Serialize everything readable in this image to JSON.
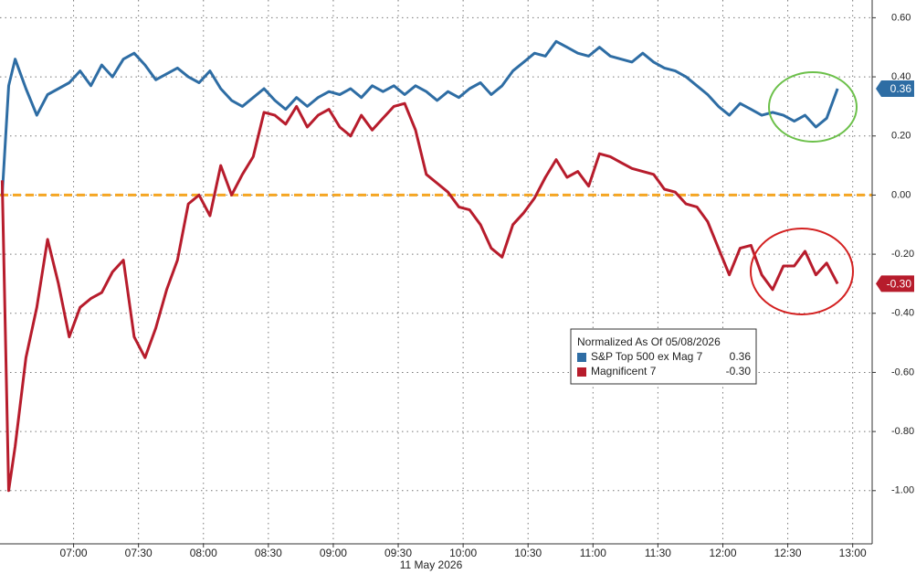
{
  "chart_data": {
    "type": "line",
    "x_label": "11 May 2026",
    "legend_title": "Normalized As Of 05/08/2026",
    "xlim": [
      "06:26",
      "13:09"
    ],
    "xticks": [
      "07:00",
      "07:30",
      "08:00",
      "08:30",
      "09:00",
      "09:30",
      "10:00",
      "10:30",
      "11:00",
      "11:30",
      "12:00",
      "12:30",
      "13:00"
    ],
    "ylim": [
      -1.18,
      0.66
    ],
    "yticks": [
      {
        "value": 0.6,
        "label": "0.60"
      },
      {
        "value": 0.4,
        "label": "0.40"
      },
      {
        "value": 0.2,
        "label": "0.20"
      },
      {
        "value": 0,
        "label": "0.00"
      },
      {
        "value": -0.2,
        "label": "-0.20"
      },
      {
        "value": -0.4,
        "label": "-0.40"
      },
      {
        "value": -0.6,
        "label": "-0.60"
      },
      {
        "value": -0.8,
        "label": "-0.80"
      },
      {
        "value": -1,
        "label": "-1.00"
      }
    ],
    "grid": true,
    "reference_line": {
      "value": 0,
      "color": "#f5a623"
    },
    "x": [
      "06:27",
      "06:30",
      "06:33",
      "06:38",
      "06:43",
      "06:48",
      "06:53",
      "06:58",
      "07:03",
      "07:08",
      "07:13",
      "07:18",
      "07:23",
      "07:28",
      "07:33",
      "07:38",
      "07:43",
      "07:48",
      "07:53",
      "07:58",
      "08:03",
      "08:08",
      "08:13",
      "08:18",
      "08:23",
      "08:28",
      "08:33",
      "08:38",
      "08:43",
      "08:48",
      "08:53",
      "08:58",
      "09:03",
      "09:08",
      "09:13",
      "09:18",
      "09:23",
      "09:28",
      "09:33",
      "09:38",
      "09:43",
      "09:48",
      "09:53",
      "09:58",
      "10:03",
      "10:08",
      "10:13",
      "10:18",
      "10:23",
      "10:28",
      "10:33",
      "10:38",
      "10:43",
      "10:48",
      "10:53",
      "10:58",
      "11:03",
      "11:08",
      "11:13",
      "11:18",
      "11:23",
      "11:28",
      "11:33",
      "11:38",
      "11:43",
      "11:48",
      "11:53",
      "11:58",
      "12:03",
      "12:08",
      "12:13",
      "12:18",
      "12:23",
      "12:28",
      "12:33",
      "12:38",
      "12:43",
      "12:48",
      "12:53"
    ],
    "series": [
      {
        "name": "S&P Top 500 ex Mag 7",
        "color": "#2e6da4",
        "last_value_label": "0.36",
        "values": [
          0.0,
          0.37,
          0.46,
          0.36,
          0.27,
          0.34,
          0.36,
          0.38,
          0.42,
          0.37,
          0.44,
          0.4,
          0.46,
          0.48,
          0.44,
          0.39,
          0.41,
          0.43,
          0.4,
          0.38,
          0.42,
          0.36,
          0.32,
          0.3,
          0.33,
          0.36,
          0.32,
          0.29,
          0.33,
          0.3,
          0.33,
          0.35,
          0.34,
          0.36,
          0.33,
          0.37,
          0.35,
          0.37,
          0.34,
          0.37,
          0.35,
          0.32,
          0.35,
          0.33,
          0.36,
          0.38,
          0.34,
          0.37,
          0.42,
          0.45,
          0.48,
          0.47,
          0.52,
          0.5,
          0.48,
          0.47,
          0.5,
          0.47,
          0.46,
          0.45,
          0.48,
          0.45,
          0.43,
          0.42,
          0.4,
          0.37,
          0.34,
          0.3,
          0.27,
          0.31,
          0.29,
          0.27,
          0.28,
          0.27,
          0.25,
          0.27,
          0.23,
          0.26,
          0.36
        ]
      },
      {
        "name": "Magnificent 7",
        "color": "#b71c2c",
        "last_value_label": "-0.30",
        "values": [
          0.05,
          -1.0,
          -0.85,
          -0.55,
          -0.38,
          -0.15,
          -0.3,
          -0.48,
          -0.38,
          -0.35,
          -0.33,
          -0.26,
          -0.22,
          -0.48,
          -0.55,
          -0.45,
          -0.32,
          -0.22,
          -0.03,
          0.0,
          -0.07,
          0.1,
          0.0,
          0.07,
          0.13,
          0.28,
          0.27,
          0.24,
          0.3,
          0.23,
          0.27,
          0.29,
          0.23,
          0.2,
          0.27,
          0.22,
          0.26,
          0.3,
          0.31,
          0.22,
          0.07,
          0.04,
          0.01,
          -0.04,
          -0.05,
          -0.1,
          -0.18,
          -0.21,
          -0.1,
          -0.06,
          -0.01,
          0.06,
          0.12,
          0.06,
          0.08,
          0.03,
          0.14,
          0.13,
          0.11,
          0.09,
          0.08,
          0.07,
          0.02,
          0.01,
          -0.03,
          -0.04,
          -0.09,
          -0.18,
          -0.27,
          -0.18,
          -0.17,
          -0.27,
          -0.32,
          -0.24,
          -0.24,
          -0.19,
          -0.27,
          -0.23,
          -0.3
        ]
      }
    ]
  }
}
